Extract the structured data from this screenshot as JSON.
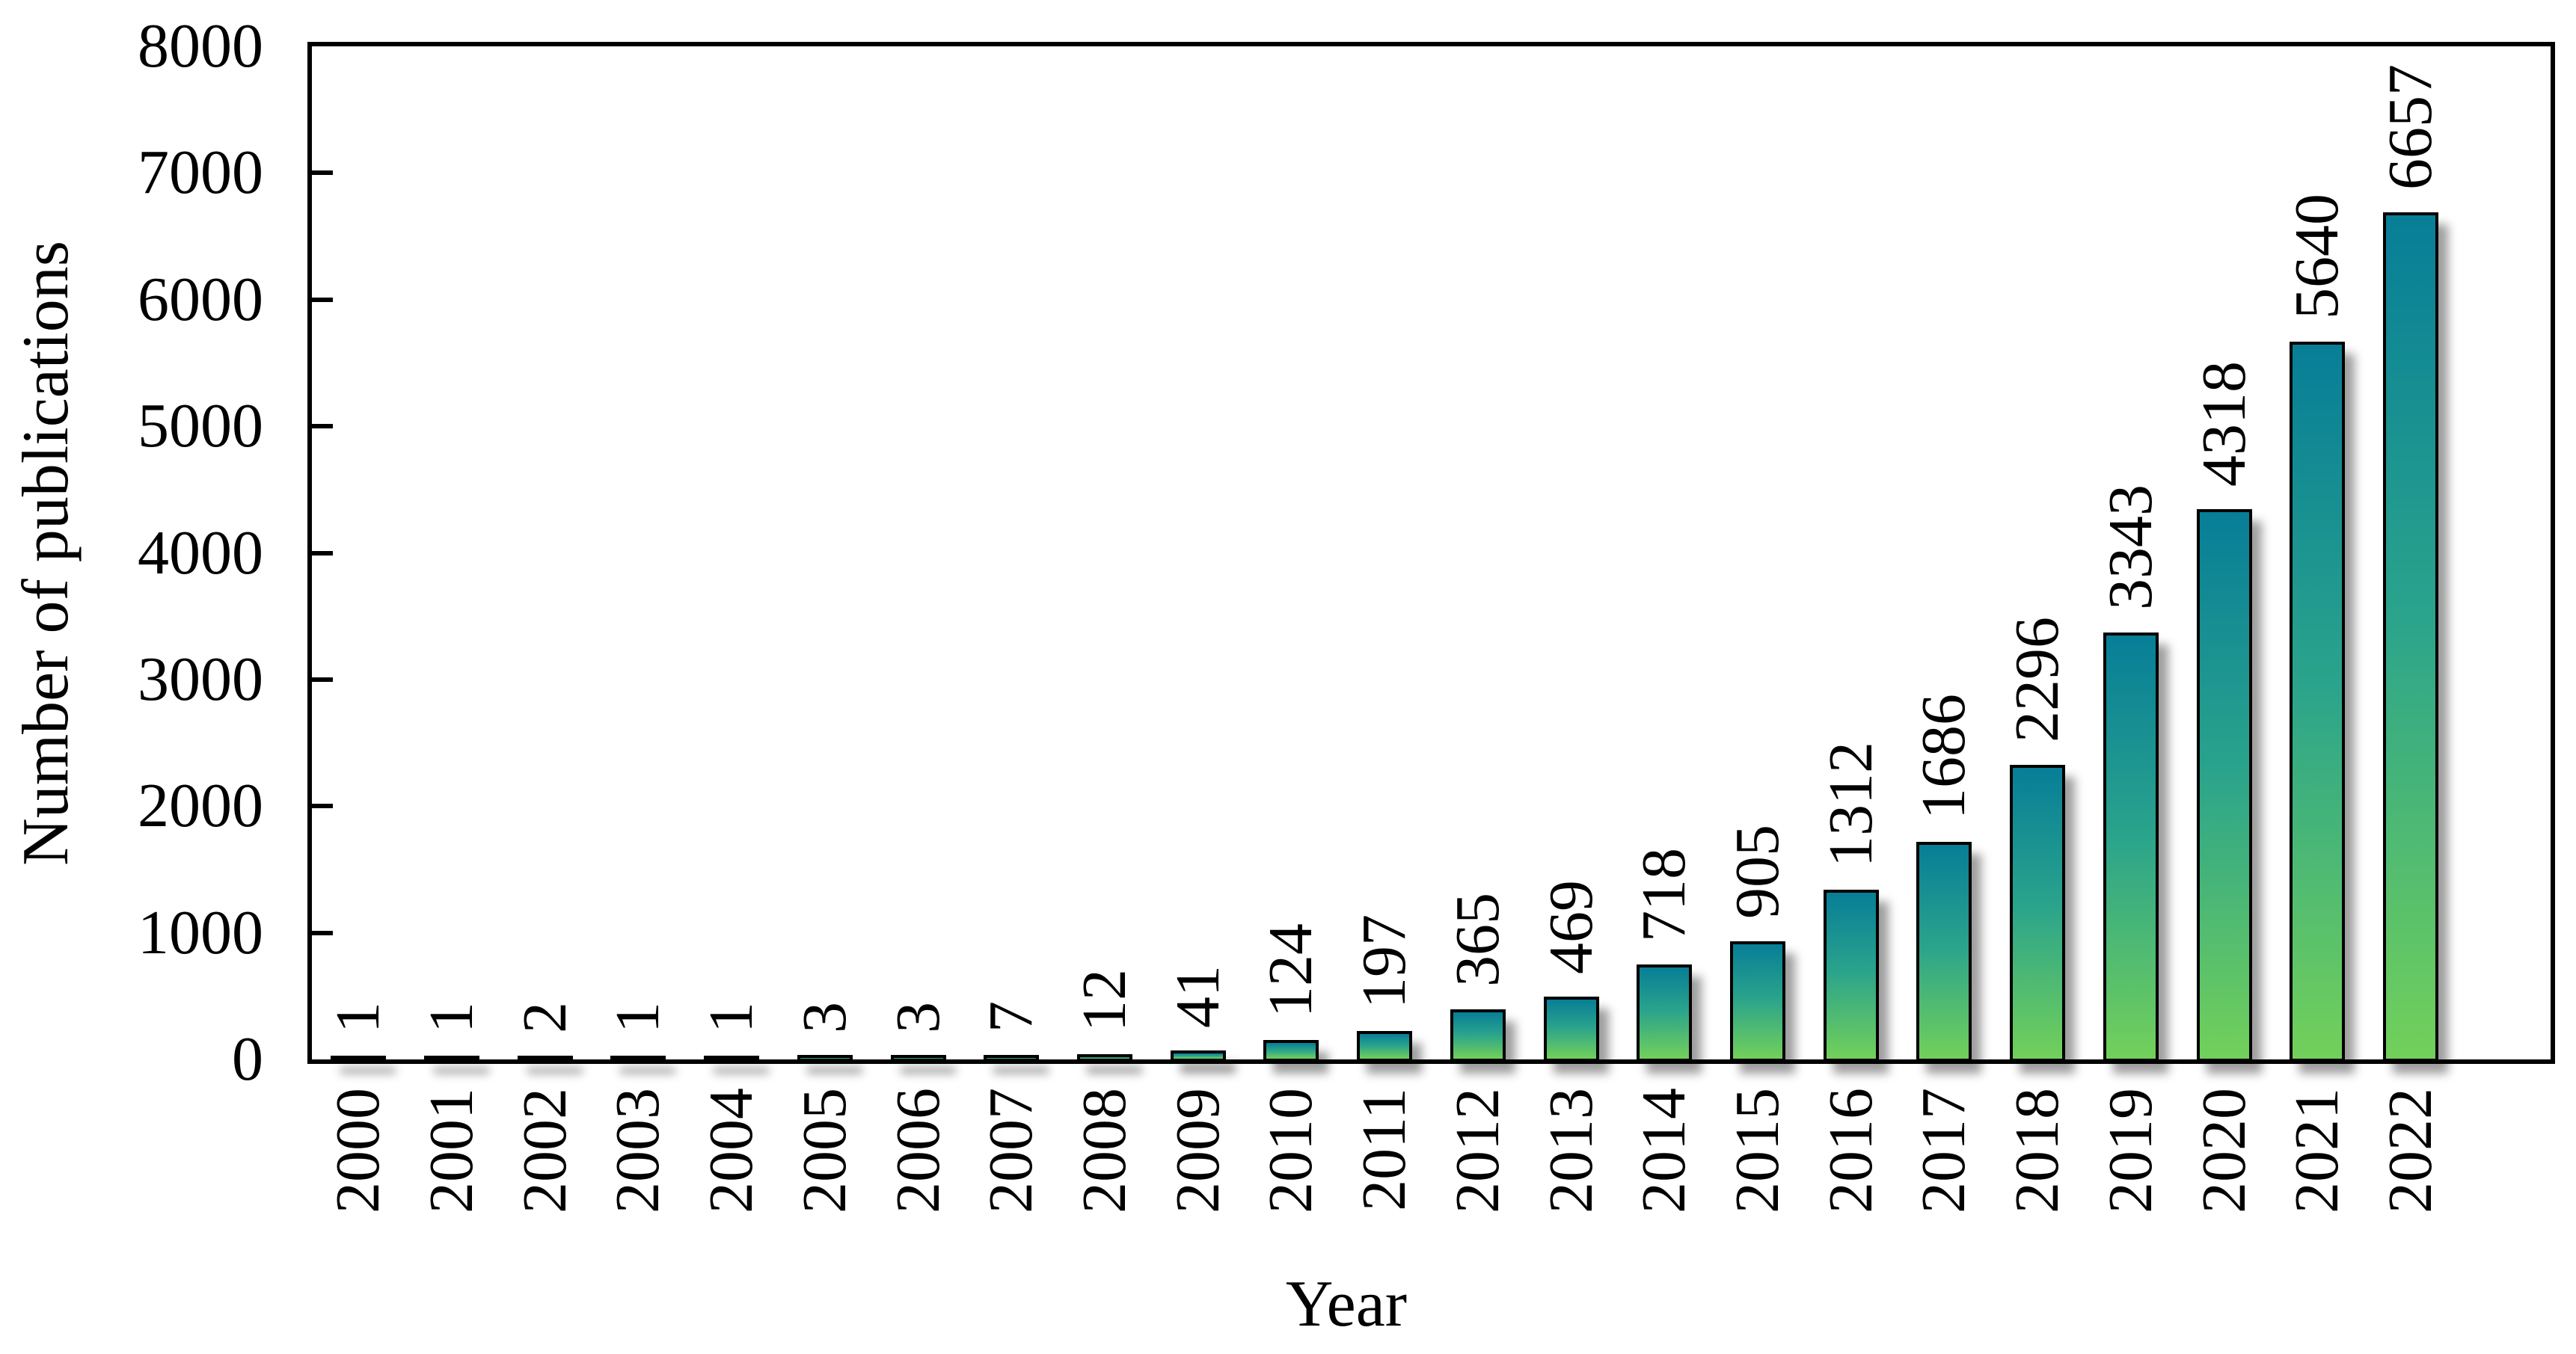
{
  "chart_data": {
    "type": "bar",
    "title": "",
    "xlabel": "Year",
    "ylabel": "Number of publications",
    "categories": [
      "2000",
      "2001",
      "2002",
      "2003",
      "2004",
      "2005",
      "2006",
      "2007",
      "2008",
      "2009",
      "2010",
      "2011",
      "2012",
      "2013",
      "2014",
      "2015",
      "2016",
      "2017",
      "2018",
      "2019",
      "2020",
      "2021",
      "2022"
    ],
    "values": [
      1,
      1,
      2,
      1,
      1,
      3,
      3,
      7,
      12,
      41,
      124,
      197,
      365,
      469,
      718,
      905,
      1312,
      1686,
      2296,
      3343,
      4318,
      5640,
      6657
    ],
    "ylim": [
      0,
      8000
    ],
    "yticks": [
      "0",
      "1000",
      "2000",
      "3000",
      "4000",
      "5000",
      "6000",
      "7000",
      "8000"
    ],
    "ytick_step": 1000,
    "grid": "off",
    "legend": "none",
    "label_rotation_deg": -90,
    "colors": {
      "bar_top": "#077e97",
      "bar_mid": "#2aa38c",
      "bar_bottom": "#72d05a",
      "bar_border": "#000000",
      "axis": "#000000",
      "background": "#ffffff"
    }
  }
}
